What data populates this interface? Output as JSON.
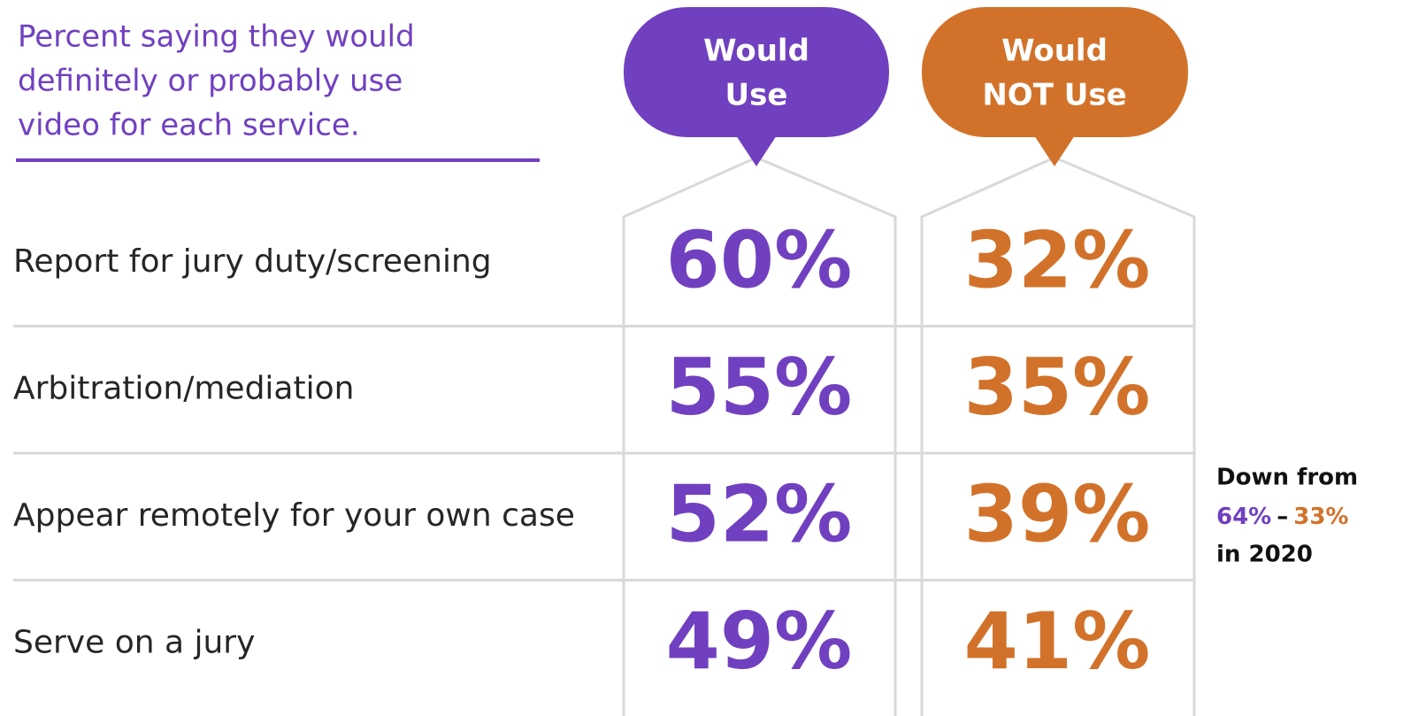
{
  "header": {
    "subtitle": [
      "Percent saying they would",
      "definitely or probably use",
      "video for each service."
    ]
  },
  "columns": [
    [
      "Would",
      "Use"
    ],
    [
      "Would",
      "NOT Use"
    ]
  ],
  "rows": [
    {
      "label": "Report for jury duty/screening",
      "would_use": "60%",
      "would_not_use": "32%"
    },
    {
      "label": "Arbitration/mediation",
      "would_use": "55%",
      "would_not_use": "35%"
    },
    {
      "label": "Appear remotely for your own case",
      "would_use": "52%",
      "would_not_use": "39%"
    },
    {
      "label": "Serve on a jury",
      "would_use": "49%",
      "would_not_use": "41%"
    }
  ],
  "note": {
    "line1": "Down from",
    "use": "64%",
    "dash": "–",
    "not_use": "33%",
    "line3": "in 2020"
  }
}
